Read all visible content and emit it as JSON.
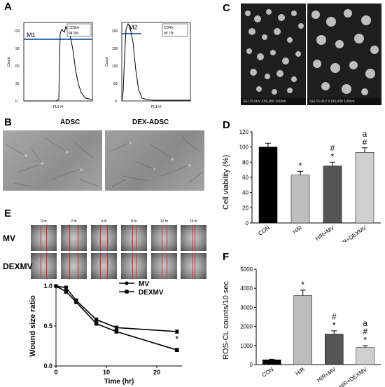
{
  "panel_labels": {
    "a": "A",
    "b": "B",
    "c": "C",
    "d": "D",
    "e": "E",
    "f": "F"
  },
  "panel_a": {
    "left": {
      "marker": "M1",
      "legend_line1": "CD90+",
      "legend_line2": "84.9%",
      "ylabel": "Count",
      "xlabel": "FL1-H",
      "yticks": [
        "0",
        "30",
        "60",
        "90",
        "120"
      ]
    },
    "right": {
      "marker": "M2",
      "legend_line1": "CD45-",
      "legend_line2": "99.7%",
      "ylabel": "Count",
      "xlabel": "FL1-H",
      "yticks": [
        "0",
        "50",
        "100",
        "150",
        "200"
      ]
    }
  },
  "panel_b": {
    "left_title": "ADSC",
    "right_title": "DEX-ADSC"
  },
  "panel_c": {
    "left_footer": "SEI   15.0kV  X50,000   100nm",
    "right_footer": "SEI   15.0kV  X100,000   100nm"
  },
  "panel_e": {
    "timepoints": [
      "0 hr",
      "2 hr",
      "4 hr",
      "8 hr",
      "12 hr",
      "24 hr"
    ],
    "row_labels": [
      "MV",
      "DEXMV"
    ]
  },
  "colors": {
    "black_bar": "#000000",
    "light_gray_bar": "#bdbdbd",
    "dark_gray_bar": "#555555",
    "lightest_bar": "#cfcfcf"
  },
  "chart_data": [
    {
      "id": "D",
      "type": "bar",
      "ylabel": "Cell viability (%)",
      "xlabel": "",
      "ylim": [
        0,
        120
      ],
      "yticks": [
        "0",
        "20",
        "40",
        "60",
        "80",
        "100",
        "120"
      ],
      "categories": [
        "CON",
        "H/R",
        "H/R+MV",
        "H/R+DEXMV"
      ],
      "values": [
        100,
        63,
        75,
        93
      ],
      "errors": [
        5,
        5,
        5,
        6
      ],
      "annotations": [
        "",
        "*",
        "#\n*",
        "a\n#"
      ]
    },
    {
      "id": "E",
      "type": "line",
      "xlabel": "Time (hr)",
      "ylabel": "Wound size ratio",
      "xlim": [
        0,
        25
      ],
      "ylim": [
        0.0,
        1.0
      ],
      "xticks": [
        "0",
        "10",
        "20"
      ],
      "yticks": [
        "0.0",
        "0.5",
        "1.0"
      ],
      "series": [
        {
          "name": "MV",
          "x": [
            0,
            2,
            4,
            8,
            12,
            24
          ],
          "y": [
            1.0,
            0.98,
            0.82,
            0.58,
            0.48,
            0.43
          ],
          "err": [
            0,
            0.02,
            0.02,
            0.02,
            0.02,
            0.02
          ]
        },
        {
          "name": "DEXMV",
          "x": [
            0,
            2,
            4,
            8,
            12,
            24
          ],
          "y": [
            1.0,
            0.93,
            0.8,
            0.53,
            0.43,
            0.2
          ],
          "err": [
            0,
            0.02,
            0.02,
            0.02,
            0.02,
            0.02
          ]
        }
      ],
      "annotation": "*"
    },
    {
      "id": "F",
      "type": "bar",
      "ylabel": "ROS-CL counts/10 sec",
      "xlabel": "",
      "ylim": [
        0,
        5000
      ],
      "yticks": [
        "0",
        "1000",
        "2000",
        "3000",
        "4000",
        "5000"
      ],
      "categories": [
        "CON",
        "H/R",
        "H/R+MV",
        "H/R+DEXMV"
      ],
      "values": [
        250,
        3620,
        1600,
        900
      ],
      "errors": [
        30,
        280,
        170,
        90
      ],
      "annotations": [
        "",
        "*",
        "#\n*",
        "a\n#\n*"
      ]
    }
  ]
}
